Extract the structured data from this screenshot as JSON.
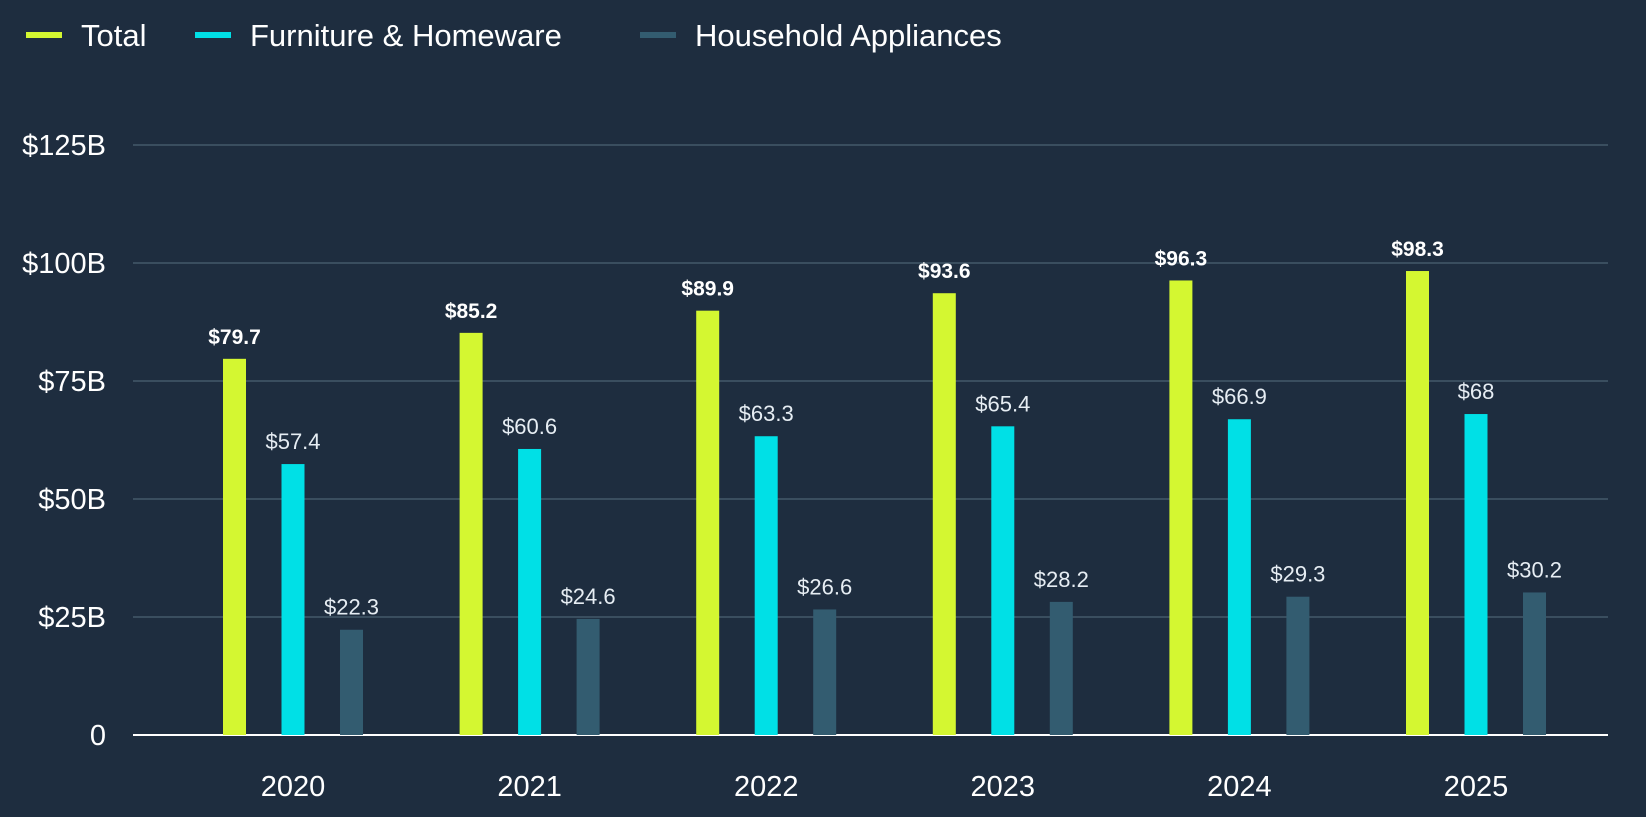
{
  "chart_data": {
    "type": "bar",
    "title": "",
    "xlabel": "",
    "ylabel": "",
    "categories": [
      "2020",
      "2021",
      "2022",
      "2023",
      "2024",
      "2025"
    ],
    "series": [
      {
        "name": "Total",
        "color": "#d4f731",
        "values": [
          79.7,
          85.2,
          89.9,
          93.6,
          96.3,
          98.3
        ],
        "labels": [
          "$79.7",
          "$85.2",
          "$89.9",
          "$93.6",
          "$96.3",
          "$98.3"
        ],
        "label_style": "bold"
      },
      {
        "name": "Furniture & Homeware",
        "color": "#00e0e6",
        "values": [
          57.4,
          60.6,
          63.3,
          65.4,
          66.9,
          68
        ],
        "labels": [
          "$57.4",
          "$60.6",
          "$63.3",
          "$65.4",
          "$66.9",
          "$68"
        ],
        "label_style": "normal"
      },
      {
        "name": "Household Appliances",
        "color": "#335c70",
        "values": [
          22.3,
          24.6,
          26.6,
          28.2,
          29.3,
          30.2
        ],
        "labels": [
          "$22.3",
          "$24.6",
          "$26.6",
          "$28.2",
          "$29.3",
          "$30.2"
        ],
        "label_style": "normal"
      }
    ],
    "ylim": [
      0,
      125
    ],
    "yticks": [
      0,
      25,
      50,
      75,
      100,
      125
    ],
    "ytick_labels": [
      "0",
      "$25B",
      "$50B",
      "$75B",
      "$100B",
      "$125B"
    ],
    "grid": true,
    "legend_position": "top-left",
    "gridline_color": "#3a4e5f",
    "baseline_color": "#ffffff",
    "background": "#1e2d3f"
  }
}
